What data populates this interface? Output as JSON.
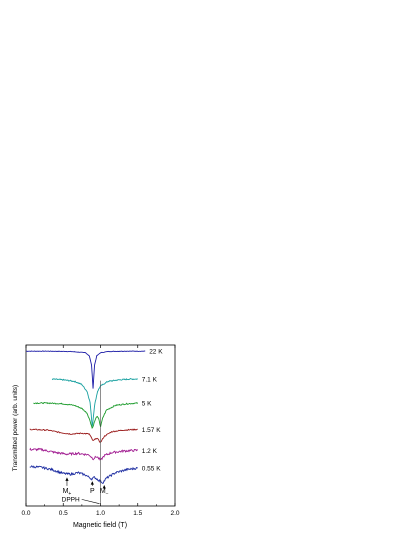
{
  "chart_data": {
    "type": "line",
    "xlabel": "Magnetic field (T)",
    "ylabel": "Transmitted power (arb. units)",
    "xlim": [
      0.0,
      2.0
    ],
    "x_ticks": [
      0.0,
      0.5,
      1.0,
      1.5,
      2.0
    ],
    "x_tick_labels": [
      "0.0",
      "0.5",
      "1.0",
      "1.5",
      "2.0"
    ],
    "y_ticks_labeled": false,
    "series": [
      {
        "name": "22 K",
        "color": "#1a1aa6",
        "x": [
          0.0,
          0.3,
          0.6,
          0.8,
          0.85,
          0.88,
          0.9,
          0.92,
          0.95,
          1.0,
          1.1,
          1.3,
          1.5,
          1.6
        ],
        "y": [
          7.9,
          7.9,
          7.88,
          7.8,
          7.6,
          7.0,
          5.5,
          7.0,
          7.6,
          7.8,
          7.88,
          7.9,
          7.9,
          7.9
        ]
      },
      {
        "name": "7.1 K",
        "color": "#18a0a0",
        "x": [
          0.35,
          0.5,
          0.65,
          0.75,
          0.82,
          0.86,
          0.89,
          0.92,
          0.96,
          1.0,
          1.1,
          1.25,
          1.4,
          1.5
        ],
        "y": [
          6.1,
          6.05,
          5.95,
          5.75,
          5.3,
          4.6,
          3.0,
          4.4,
          5.3,
          5.65,
          5.95,
          6.05,
          6.1,
          6.1
        ]
      },
      {
        "name": "5 K",
        "color": "#1a9a2a",
        "x": [
          0.1,
          0.3,
          0.5,
          0.65,
          0.75,
          0.82,
          0.86,
          0.89,
          0.92,
          0.95,
          0.98,
          1.0,
          1.03,
          1.08,
          1.2,
          1.35,
          1.5
        ],
        "y": [
          4.55,
          4.55,
          4.5,
          4.4,
          4.2,
          3.9,
          3.4,
          2.9,
          3.35,
          3.7,
          3.5,
          3.0,
          3.6,
          4.1,
          4.4,
          4.5,
          4.55
        ]
      },
      {
        "name": "1.57 K",
        "color": "#9a1a1a",
        "x": [
          0.05,
          0.3,
          0.45,
          0.6,
          0.75,
          0.85,
          0.9,
          0.95,
          1.0,
          1.05,
          1.15,
          1.3,
          1.5
        ],
        "y": [
          2.85,
          2.8,
          2.65,
          2.55,
          2.6,
          2.55,
          2.1,
          2.3,
          2.0,
          2.4,
          2.7,
          2.8,
          2.85
        ]
      },
      {
        "name": "1.2 K",
        "color": "#a01a90",
        "x": [
          0.05,
          0.2,
          0.4,
          0.55,
          0.7,
          0.85,
          0.9,
          0.95,
          1.0,
          1.05,
          1.15,
          1.3,
          1.5
        ],
        "y": [
          1.55,
          1.55,
          1.35,
          1.25,
          1.3,
          1.2,
          0.95,
          1.1,
          0.85,
          1.15,
          1.35,
          1.45,
          1.5
        ]
      },
      {
        "name": "0.55 K",
        "color": "#1a2aa0",
        "x": [
          0.05,
          0.2,
          0.35,
          0.5,
          0.6,
          0.7,
          0.8,
          0.88,
          0.92,
          0.98,
          1.03,
          1.08,
          1.2,
          1.35,
          1.5
        ],
        "y": [
          0.45,
          0.4,
          0.25,
          0.0,
          -0.05,
          0.05,
          -0.1,
          -0.35,
          -0.25,
          -0.45,
          -0.6,
          -0.3,
          0.05,
          0.25,
          0.35
        ]
      }
    ],
    "annotations": [
      {
        "text": "M",
        "subscript": "+",
        "x": 0.55,
        "arrow_to_y": -0.15
      },
      {
        "text": "P",
        "x": 0.89,
        "arrow_to_y": -0.4
      },
      {
        "text": "M",
        "subscript": "−",
        "x": 1.05,
        "arrow_to_y": -0.65
      },
      {
        "text": "DPPH",
        "x": 1.0,
        "arrow_to_y": -1.95
      }
    ],
    "ylim": [
      -2.1,
      8.3
    ],
    "grid": false,
    "legend": "inline labels at right end of each trace"
  }
}
